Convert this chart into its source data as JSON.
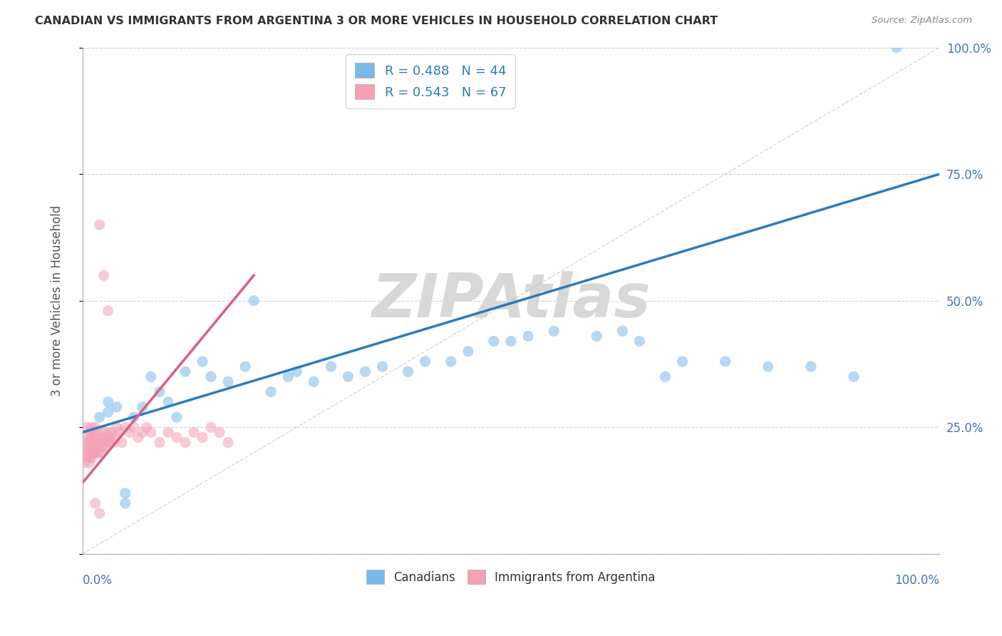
{
  "title": "CANADIAN VS IMMIGRANTS FROM ARGENTINA 3 OR MORE VEHICLES IN HOUSEHOLD CORRELATION CHART",
  "source": "Source: ZipAtlas.com",
  "ylabel": "3 or more Vehicles in Household",
  "xlim": [
    0,
    1
  ],
  "ylim": [
    0,
    1
  ],
  "yticks": [
    0.0,
    0.25,
    0.5,
    0.75,
    1.0
  ],
  "ytick_labels_right": [
    "",
    "25.0%",
    "50.0%",
    "75.0%",
    "100.0%"
  ],
  "legend_line1": "R = 0.488   N = 44",
  "legend_line2": "R = 0.543   N = 67",
  "canadians_x": [
    0.02,
    0.03,
    0.03,
    0.04,
    0.05,
    0.05,
    0.06,
    0.07,
    0.08,
    0.09,
    0.1,
    0.11,
    0.12,
    0.14,
    0.15,
    0.17,
    0.19,
    0.2,
    0.22,
    0.24,
    0.25,
    0.27,
    0.29,
    0.31,
    0.33,
    0.35,
    0.38,
    0.4,
    0.43,
    0.45,
    0.48,
    0.5,
    0.52,
    0.55,
    0.6,
    0.63,
    0.65,
    0.68,
    0.7,
    0.75,
    0.8,
    0.85,
    0.9,
    0.95
  ],
  "canadians_y": [
    0.27,
    0.28,
    0.3,
    0.29,
    0.1,
    0.12,
    0.27,
    0.29,
    0.35,
    0.32,
    0.3,
    0.27,
    0.36,
    0.38,
    0.35,
    0.34,
    0.37,
    0.5,
    0.32,
    0.35,
    0.36,
    0.34,
    0.37,
    0.35,
    0.36,
    0.37,
    0.36,
    0.38,
    0.38,
    0.4,
    0.42,
    0.42,
    0.43,
    0.44,
    0.43,
    0.44,
    0.42,
    0.35,
    0.38,
    0.38,
    0.37,
    0.37,
    0.35,
    1.0
  ],
  "argentina_x": [
    0.002,
    0.003,
    0.004,
    0.005,
    0.005,
    0.006,
    0.007,
    0.007,
    0.008,
    0.008,
    0.009,
    0.009,
    0.01,
    0.01,
    0.011,
    0.011,
    0.012,
    0.012,
    0.013,
    0.013,
    0.014,
    0.015,
    0.015,
    0.016,
    0.016,
    0.017,
    0.018,
    0.019,
    0.02,
    0.021,
    0.022,
    0.023,
    0.024,
    0.025,
    0.026,
    0.027,
    0.028,
    0.029,
    0.03,
    0.032,
    0.034,
    0.036,
    0.038,
    0.04,
    0.043,
    0.046,
    0.05,
    0.055,
    0.06,
    0.065,
    0.07,
    0.075,
    0.08,
    0.09,
    0.1,
    0.11,
    0.12,
    0.13,
    0.14,
    0.15,
    0.16,
    0.17,
    0.02,
    0.025,
    0.03,
    0.015,
    0.02
  ],
  "argentina_y": [
    0.2,
    0.18,
    0.22,
    0.19,
    0.25,
    0.21,
    0.2,
    0.23,
    0.18,
    0.22,
    0.19,
    0.24,
    0.2,
    0.23,
    0.19,
    0.25,
    0.2,
    0.22,
    0.21,
    0.24,
    0.2,
    0.22,
    0.25,
    0.2,
    0.23,
    0.21,
    0.24,
    0.2,
    0.22,
    0.21,
    0.23,
    0.2,
    0.22,
    0.24,
    0.21,
    0.23,
    0.22,
    0.24,
    0.22,
    0.23,
    0.24,
    0.22,
    0.23,
    0.25,
    0.24,
    0.22,
    0.25,
    0.24,
    0.25,
    0.23,
    0.24,
    0.25,
    0.24,
    0.22,
    0.24,
    0.23,
    0.22,
    0.24,
    0.23,
    0.25,
    0.24,
    0.22,
    0.65,
    0.55,
    0.48,
    0.1,
    0.08
  ],
  "blue_line_x": [
    0.0,
    1.0
  ],
  "blue_line_y": [
    0.24,
    0.75
  ],
  "pink_line_x": [
    0.0,
    0.2
  ],
  "pink_line_y": [
    0.14,
    0.55
  ],
  "diag_line_x": [
    0.0,
    1.0
  ],
  "diag_line_y": [
    0.0,
    1.0
  ],
  "watermark": "ZIPAtlas",
  "background_color": "#ffffff",
  "blue_color": "#7ab8e8",
  "pink_color": "#f4a0b5",
  "blue_dark": "#2b7bba",
  "pink_dark": "#d95f7f",
  "grid_color": "#c8c8c8",
  "watermark_color": "#d8d8d8",
  "tick_color": "#4472c4",
  "ylabel_color": "#555555"
}
